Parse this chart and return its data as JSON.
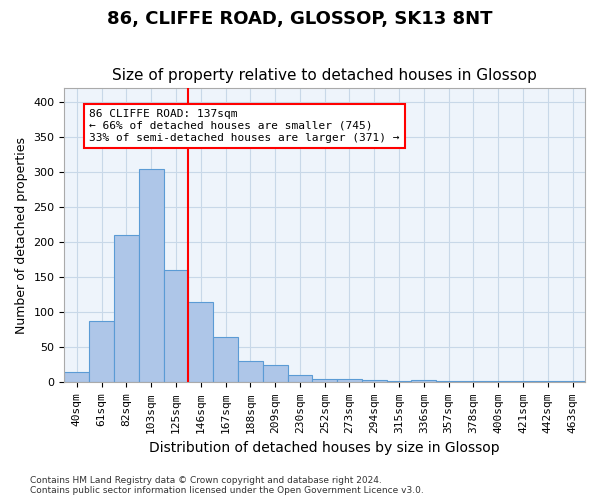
{
  "title_line1": "86, CLIFFE ROAD, GLOSSOP, SK13 8NT",
  "title_line2": "Size of property relative to detached houses in Glossop",
  "xlabel": "Distribution of detached houses by size in Glossop",
  "ylabel": "Number of detached properties",
  "footer_line1": "Contains HM Land Registry data © Crown copyright and database right 2024.",
  "footer_line2": "Contains public sector information licensed under the Open Government Licence v3.0.",
  "bin_labels": [
    "40sqm",
    "61sqm",
    "82sqm",
    "103sqm",
    "125sqm",
    "146sqm",
    "167sqm",
    "188sqm",
    "209sqm",
    "230sqm",
    "252sqm",
    "273sqm",
    "294sqm",
    "315sqm",
    "336sqm",
    "357sqm",
    "378sqm",
    "400sqm",
    "421sqm",
    "442sqm",
    "463sqm"
  ],
  "bar_heights": [
    15,
    88,
    210,
    305,
    160,
    115,
    65,
    30,
    25,
    10,
    5,
    5,
    3,
    2,
    3,
    2,
    2,
    2,
    2,
    2,
    2
  ],
  "bar_color": "#aec6e8",
  "bar_edge_color": "#5b9bd5",
  "grid_color": "#c8d8e8",
  "background_color": "#eef4fb",
  "annotation_line1": "86 CLIFFE ROAD: 137sqm",
  "annotation_line2": "← 66% of detached houses are smaller (745)",
  "annotation_line3": "33% of semi-detached houses are larger (371) →",
  "annotation_box_color": "white",
  "annotation_box_edge_color": "red",
  "vline_x": 4.5,
  "vline_color": "red",
  "ylim": [
    0,
    420
  ],
  "yticks": [
    0,
    50,
    100,
    150,
    200,
    250,
    300,
    350,
    400
  ],
  "title_fontsize": 13,
  "subtitle_fontsize": 11,
  "xlabel_fontsize": 10,
  "ylabel_fontsize": 9,
  "tick_fontsize": 8,
  "annotation_fontsize": 8
}
